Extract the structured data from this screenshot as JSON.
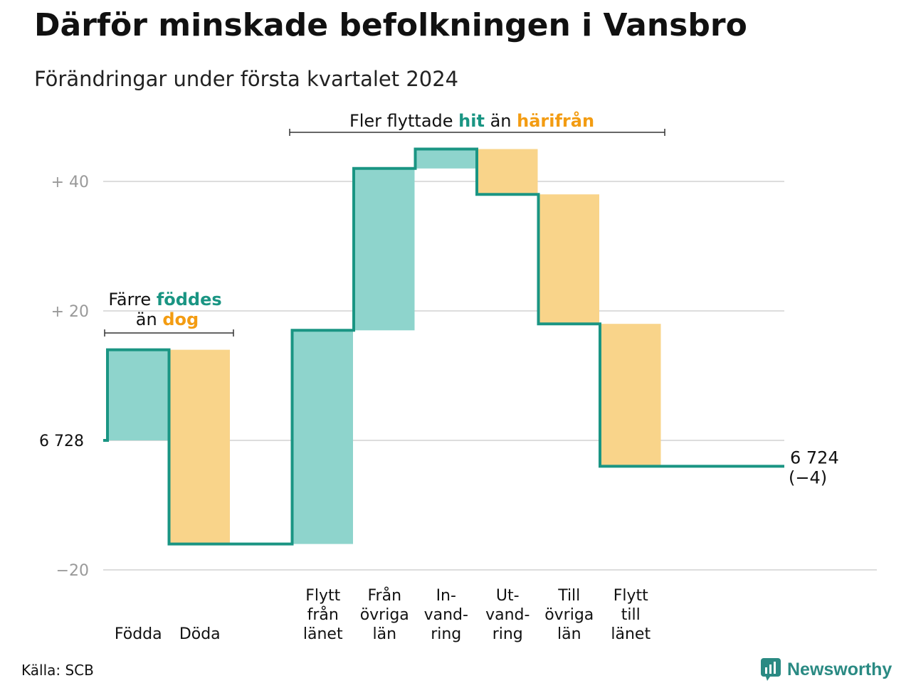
{
  "title": "Därför minskade befolkningen i Vansbro",
  "subtitle": "Förändringar under första kvartalet 2024",
  "source": "Källa: SCB",
  "logo_text": "Newsworthy",
  "colors": {
    "increase": "#8ed4cc",
    "decrease": "#f9d48a",
    "line": "#1a9583",
    "teal_text": "#1a9583",
    "orange_text": "#f39c12",
    "grid": "#dddddd",
    "tick": "#999999"
  },
  "annotations": {
    "births": {
      "line1_prefix": "Färre ",
      "line1_emph": "föddes",
      "line2_prefix": "än ",
      "line2_emph": "dog"
    },
    "moves": {
      "prefix": "Fler flyttade ",
      "emph1": "hit",
      "middle": " än ",
      "emph2": "härifrån"
    }
  },
  "end_label": {
    "value": "6 724",
    "change": "(−4)"
  },
  "chart_data": {
    "type": "waterfall",
    "title": "Därför minskade befolkningen i Vansbro",
    "subtitle": "Förändringar under första kvartalet 2024",
    "start_value": 6728,
    "start_label": "6  728",
    "end_value": 6724,
    "yticks": [
      {
        "value": 40,
        "label": "+  40"
      },
      {
        "value": 20,
        "label": "+  20"
      },
      {
        "value": 0,
        "label": "6  728"
      },
      {
        "value": -20,
        "label": "−20"
      }
    ],
    "ylim": [
      -20,
      45
    ],
    "steps": [
      {
        "category": [
          "Födda"
        ],
        "change": 14,
        "kind": "increase"
      },
      {
        "category": [
          "Döda"
        ],
        "change": -30,
        "kind": "decrease"
      },
      {
        "category": [],
        "change": 0,
        "kind": "gap"
      },
      {
        "category": [
          "Flytt",
          "från",
          "länet"
        ],
        "change": 33,
        "kind": "increase"
      },
      {
        "category": [
          "Från",
          "övriga",
          "län"
        ],
        "change": 25,
        "kind": "increase"
      },
      {
        "category": [
          "In-",
          "vand-",
          "ring"
        ],
        "change": 3,
        "kind": "increase"
      },
      {
        "category": [
          "Ut-",
          "vand-",
          "ring"
        ],
        "change": -7,
        "kind": "decrease"
      },
      {
        "category": [
          "Till",
          "övriga",
          "län"
        ],
        "change": -20,
        "kind": "decrease"
      },
      {
        "category": [
          "Flytt",
          "till",
          "länet"
        ],
        "change": -22,
        "kind": "decrease"
      }
    ]
  }
}
